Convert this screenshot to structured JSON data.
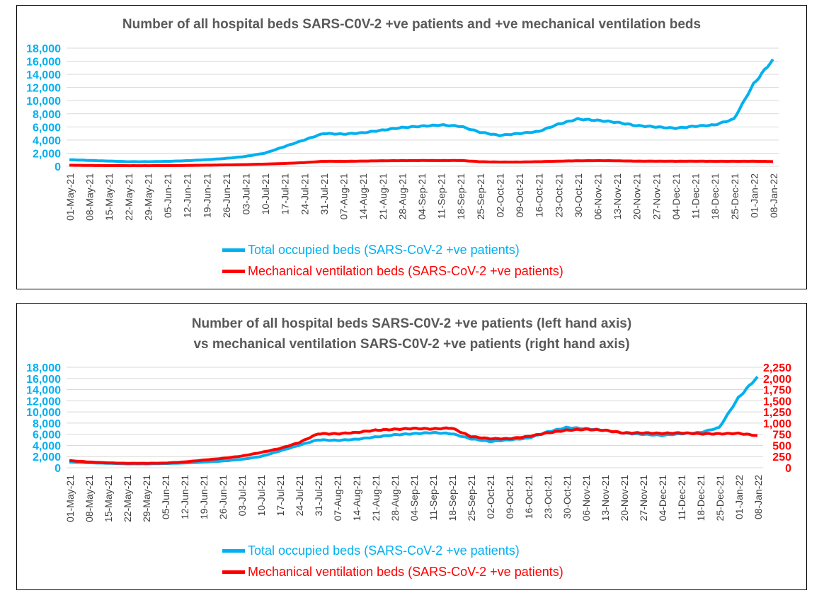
{
  "chart_data": [
    {
      "type": "line",
      "title": "Number of all hospital beds SARS-C0V-2 +ve patients and +ve mechanical ventilation beds",
      "categories": [
        "01-May-21",
        "08-May-21",
        "15-May-21",
        "22-May-21",
        "29-May-21",
        "05-Jun-21",
        "12-Jun-21",
        "19-Jun-21",
        "26-Jun-21",
        "03-Jul-21",
        "10-Jul-21",
        "17-Jul-21",
        "24-Jul-21",
        "31-Jul-21",
        "07-Aug-21",
        "14-Aug-21",
        "21-Aug-21",
        "28-Aug-21",
        "04-Sep-21",
        "11-Sep-21",
        "18-Sep-21",
        "25-Sep-21",
        "02-Oct-21",
        "09-Oct-21",
        "16-Oct-21",
        "23-Oct-21",
        "30-Oct-21",
        "06-Nov-21",
        "13-Nov-21",
        "20-Nov-21",
        "27-Nov-21",
        "04-Dec-21",
        "11-Dec-21",
        "18-Dec-21",
        "25-Dec-21",
        "01-Jan-22",
        "08-Jan-22"
      ],
      "yticks": [
        "0",
        "2,000",
        "4,000",
        "6,000",
        "8,000",
        "10,000",
        "12,000",
        "14,000",
        "16,000",
        "18,000"
      ],
      "ylim": [
        0,
        18000
      ],
      "series": [
        {
          "name": "Total occupied beds (SARS-CoV-2 +ve patients)",
          "color": "#00B0F0",
          "values": [
            1000,
            900,
            800,
            700,
            700,
            750,
            850,
            1000,
            1200,
            1500,
            2000,
            3000,
            4000,
            5000,
            4900,
            5100,
            5500,
            5900,
            6100,
            6300,
            6100,
            5200,
            4700,
            5000,
            5300,
            6400,
            7200,
            7000,
            6700,
            6200,
            6000,
            5800,
            6100,
            6300,
            7200,
            12500,
            16300
          ]
        },
        {
          "name": "Mechanical ventilation beds (SARS-CoV-2 +ve patients)",
          "color": "#FF0000",
          "values": [
            160,
            130,
            110,
            100,
            100,
            105,
            130,
            170,
            210,
            260,
            340,
            430,
            560,
            760,
            760,
            790,
            840,
            860,
            880,
            870,
            890,
            700,
            650,
            650,
            700,
            780,
            840,
            860,
            840,
            780,
            780,
            770,
            780,
            760,
            760,
            770,
            720
          ]
        }
      ],
      "legend": "bottom"
    },
    {
      "type": "line",
      "title_lines": [
        "Number of all hospital beds SARS-C0V-2 +ve patients (left hand axis)",
        "vs mechanical ventilation SARS-C0V-2 +ve patients (right hand axis)"
      ],
      "yticks": [
        "0",
        "2,000",
        "4,000",
        "6,000",
        "8,000",
        "10,000",
        "12,000",
        "14,000",
        "16,000",
        "18,000"
      ],
      "ylim": [
        0,
        18000
      ],
      "y2ticks": [
        "0",
        "250",
        "500",
        "750",
        "1,000",
        "1,250",
        "1,500",
        "1,750",
        "2,000",
        "2,250"
      ],
      "y2lim": [
        0,
        2250
      ],
      "series_axes": [
        "left",
        "right"
      ],
      "legend": "bottom"
    }
  ]
}
